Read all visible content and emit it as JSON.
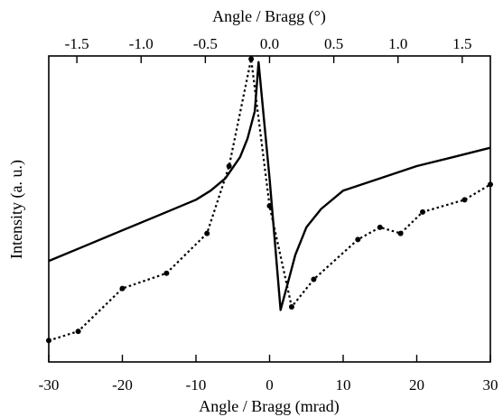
{
  "chart_data": {
    "type": "line",
    "xlabel": "Angle / Bragg (mrad)",
    "ylabel": "Intensity (a. u.)",
    "xlim": [
      -30,
      30
    ],
    "ylim": [
      0,
      1
    ],
    "x_ticks": [
      -30,
      -20,
      -10,
      0,
      10,
      20,
      30
    ],
    "x_tick_labels": [
      "-30",
      "-20",
      "-10",
      "0",
      "10",
      "20",
      "30"
    ],
    "top_axis": {
      "label": "Angle / Bragg (°)",
      "xlim": [
        -1.7189,
        1.7189
      ],
      "ticks": [
        -1.5,
        -1.0,
        -0.5,
        0.0,
        0.5,
        1.0,
        1.5
      ],
      "tick_labels": [
        "-1.5",
        "-1.0",
        "-0.5",
        "0.0",
        "0.5",
        "1.0",
        "1.5"
      ]
    },
    "grid": false,
    "legend": "none",
    "series": [
      {
        "style": "solid",
        "color": "#000000",
        "x": [
          -30,
          -25,
          -20,
          -15,
          -10,
          -8,
          -6,
          -4,
          -3,
          -2,
          -1.5,
          0,
          1.5,
          2.5,
          3.5,
          5,
          7,
          10,
          15,
          20,
          25,
          30
        ],
        "y": [
          0.33,
          0.38,
          0.43,
          0.48,
          0.53,
          0.56,
          0.6,
          0.67,
          0.73,
          0.82,
          0.98,
          0.6,
          0.17,
          0.26,
          0.35,
          0.44,
          0.5,
          0.56,
          0.6,
          0.64,
          0.67,
          0.7
        ]
      },
      {
        "style": "dotted",
        "color": "#000000",
        "markers": true,
        "x": [
          -30,
          -26,
          -20,
          -14,
          -8.5,
          -5.5,
          -2.5,
          0,
          3,
          6,
          12,
          15,
          17.8,
          20.8,
          26.5,
          30
        ],
        "y": [
          0.07,
          0.1,
          0.24,
          0.29,
          0.42,
          0.64,
          0.99,
          0.51,
          0.18,
          0.27,
          0.4,
          0.44,
          0.42,
          0.49,
          0.53,
          0.58
        ]
      }
    ]
  }
}
